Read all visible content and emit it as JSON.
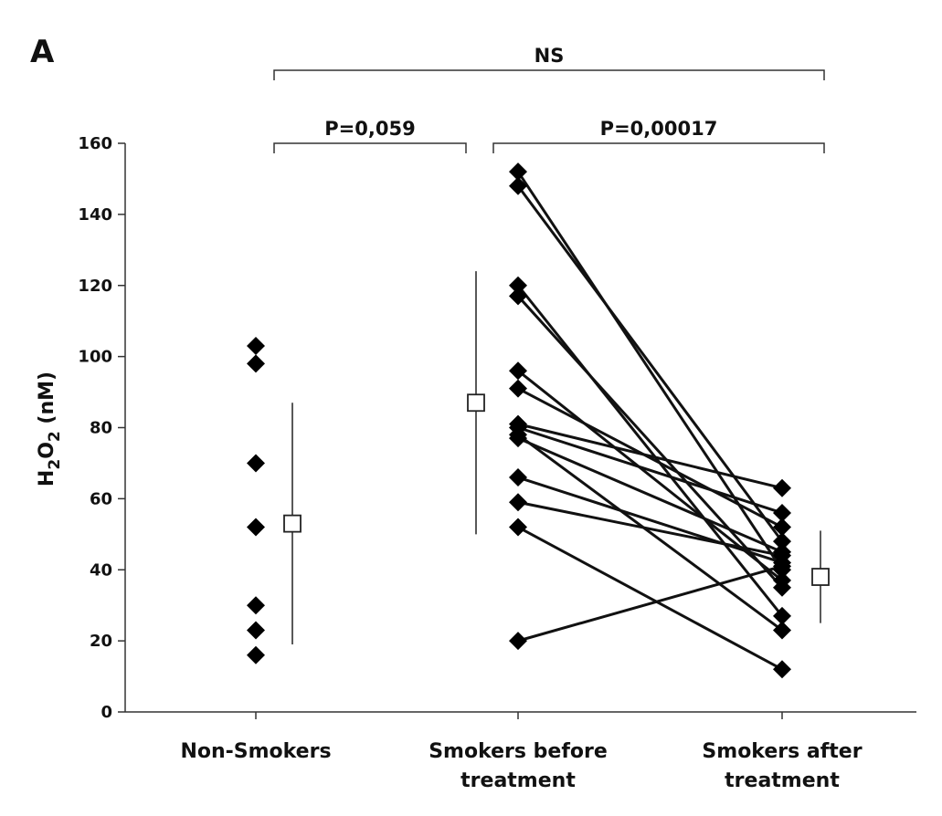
{
  "chart_data": {
    "type": "scatter",
    "panel_label": "A",
    "ylabel": {
      "main": "H",
      "sub1": "2",
      "mid": "O",
      "sub2": "2",
      "unit": " (nM)"
    },
    "ylim": [
      0,
      160
    ],
    "yticks": [
      0,
      20,
      40,
      60,
      80,
      100,
      120,
      140,
      160
    ],
    "categories": [
      "Non-Smokers",
      "Smokers before treatment",
      "Smokers after treatment"
    ],
    "category_labels": [
      [
        "Non-Smokers"
      ],
      [
        "Smokers before",
        "treatment"
      ],
      [
        "Smokers after",
        "treatment"
      ]
    ],
    "non_smokers": [
      103,
      98,
      70,
      52,
      30,
      23,
      16
    ],
    "paired": [
      {
        "before": 152,
        "after": 40
      },
      {
        "before": 148,
        "after": 48
      },
      {
        "before": 120,
        "after": 27
      },
      {
        "before": 117,
        "after": 35
      },
      {
        "before": 96,
        "after": 37
      },
      {
        "before": 91,
        "after": 52
      },
      {
        "before": 81,
        "after": 63
      },
      {
        "before": 80,
        "after": 56
      },
      {
        "before": 78,
        "after": 23
      },
      {
        "before": 77,
        "after": 45
      },
      {
        "before": 66,
        "after": 42
      },
      {
        "before": 59,
        "after": 44
      },
      {
        "before": 52,
        "after": 12
      },
      {
        "before": 20,
        "after": 41
      }
    ],
    "means": [
      {
        "category": "Non-Smokers",
        "mean": 53,
        "low": 19,
        "high": 87
      },
      {
        "category": "Smokers before treatment",
        "mean": 87,
        "low": 50,
        "high": 124
      },
      {
        "category": "Smokers after treatment",
        "mean": 38,
        "low": 25,
        "high": 51
      }
    ],
    "annotations": [
      {
        "text": "NS",
        "from": 0,
        "to": 2,
        "level": "top"
      },
      {
        "text": "P=0,059",
        "from": 0,
        "to": 1,
        "level": "lower"
      },
      {
        "text": "P=0,00017",
        "from": 1,
        "to": 2,
        "level": "lower"
      }
    ]
  }
}
